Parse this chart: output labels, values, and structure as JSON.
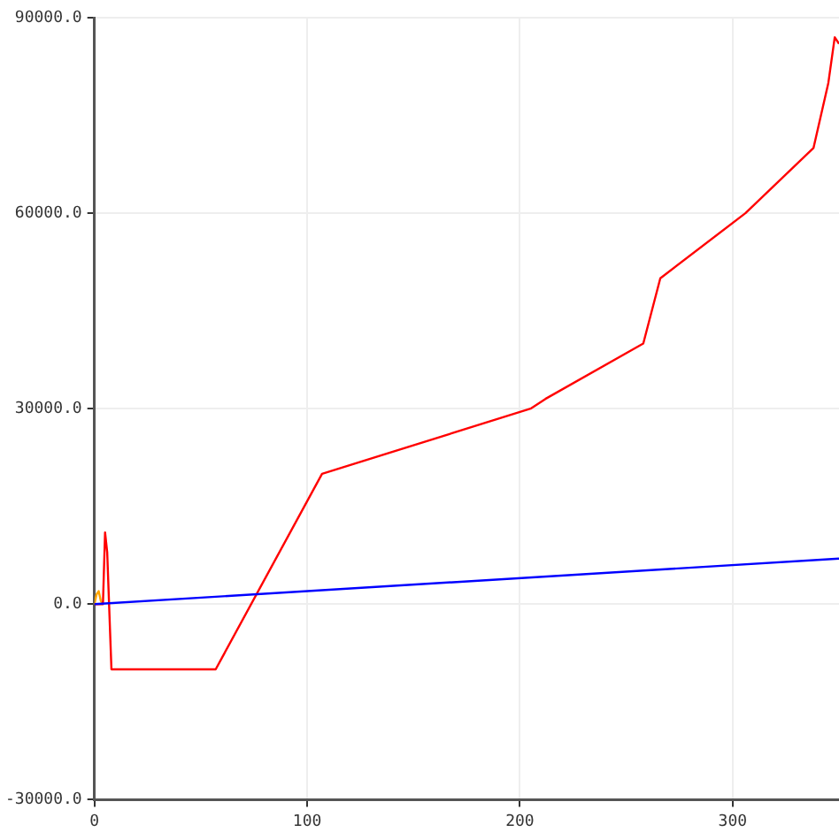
{
  "chart_data": {
    "type": "line",
    "xlim": [
      0,
      350
    ],
    "xticks": [
      0,
      100,
      200,
      300
    ],
    "ylim": [
      -30000,
      90000
    ],
    "yticks": [
      {
        "value": -30000,
        "label": "-30000.0"
      },
      {
        "value": 0,
        "label": "0.0"
      },
      {
        "value": 30000,
        "label": "30000.0"
      },
      {
        "value": 60000,
        "label": "60000.0"
      },
      {
        "value": 90000,
        "label": "90000.0"
      }
    ],
    "grid": true,
    "marker": "none",
    "line_style": "solid",
    "series": [
      {
        "color": "#0000ff",
        "x": [
          0,
          350
        ],
        "values": [
          0,
          7000
        ]
      },
      {
        "color": "#ff0000",
        "x": [
          0,
          4,
          5,
          6,
          8,
          57,
          107,
          205,
          212,
          258,
          266,
          306,
          338,
          345,
          348,
          350
        ],
        "values": [
          0,
          0,
          11000,
          8000,
          -10000,
          -10000,
          20000,
          30000,
          31500,
          40000,
          50000,
          60000,
          70000,
          80000,
          87000,
          86000
        ]
      },
      {
        "color": "#ffa500",
        "x": [
          0,
          1,
          2,
          3,
          4
        ],
        "values": [
          0,
          1500,
          2000,
          500,
          0
        ]
      }
    ]
  }
}
